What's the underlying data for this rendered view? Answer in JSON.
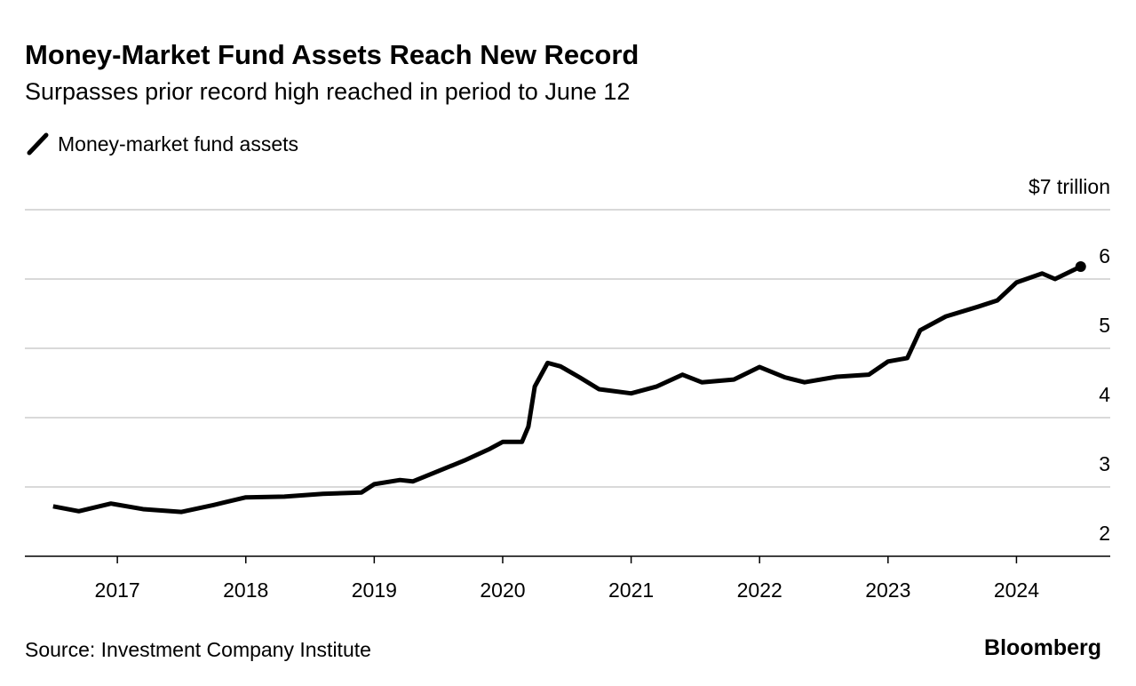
{
  "chart_data": {
    "type": "line",
    "title": "Money-Market Fund Assets Reach New Record",
    "subtitle": "Surpasses prior record high reached in period to June 12",
    "source": "Source: Investment Company Institute",
    "brand": "Bloomberg",
    "x": [
      2016.5,
      2016.7,
      2016.95,
      2017.2,
      2017.5,
      2017.75,
      2018.0,
      2018.3,
      2018.6,
      2018.9,
      2019.0,
      2019.2,
      2019.3,
      2019.5,
      2019.7,
      2019.9,
      2020.0,
      2020.15,
      2020.2,
      2020.25,
      2020.35,
      2020.45,
      2020.6,
      2020.75,
      2021.0,
      2021.2,
      2021.4,
      2021.55,
      2021.8,
      2022.0,
      2022.2,
      2022.35,
      2022.6,
      2022.85,
      2023.0,
      2023.15,
      2023.25,
      2023.45,
      2023.7,
      2023.85,
      2024.0,
      2024.2,
      2024.3,
      2024.5
    ],
    "series": [
      {
        "name": "Money-market fund assets",
        "color": "#000000",
        "values": [
          2.72,
          2.65,
          2.76,
          2.68,
          2.64,
          2.74,
          2.85,
          2.86,
          2.9,
          2.92,
          3.04,
          3.1,
          3.08,
          3.23,
          3.38,
          3.55,
          3.65,
          3.65,
          3.87,
          4.45,
          4.79,
          4.74,
          4.58,
          4.41,
          4.35,
          4.45,
          4.62,
          4.51,
          4.55,
          4.73,
          4.58,
          4.51,
          4.59,
          4.62,
          4.81,
          4.86,
          5.26,
          5.46,
          5.6,
          5.69,
          5.95,
          6.08,
          6.0,
          6.18
        ]
      }
    ],
    "xlim": [
      2016.28,
      2024.73
    ],
    "xticks": [
      2017,
      2018,
      2019,
      2020,
      2021,
      2022,
      2023,
      2024
    ],
    "ylim": [
      2,
      7
    ],
    "yticks": [
      2,
      3,
      4,
      5,
      6,
      {
        "value": 7,
        "label": "$7 trillion"
      }
    ],
    "grid": true
  }
}
